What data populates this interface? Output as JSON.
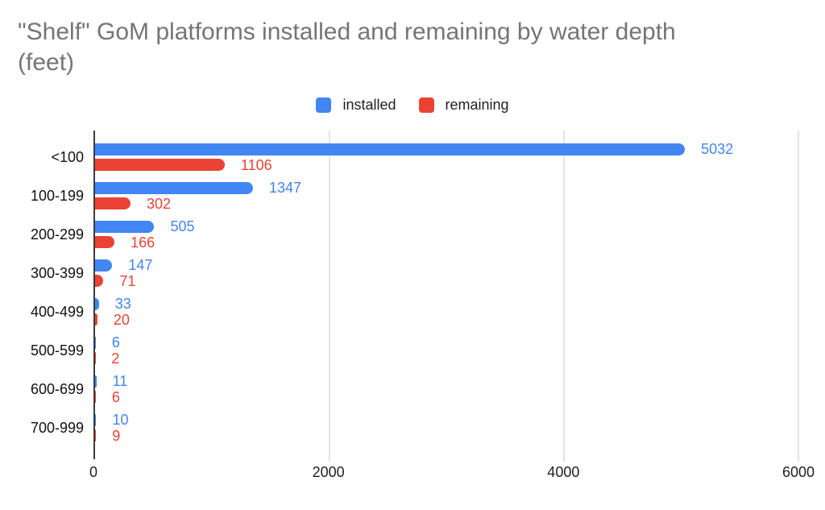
{
  "title": {
    "line1": "\"Shelf\" GoM platforms installed and remaining by water depth",
    "line2": "(feet)"
  },
  "legend": [
    {
      "label": "installed",
      "color": "#4285F4"
    },
    {
      "label": "remaining",
      "color": "#EA4335"
    }
  ],
  "colors": {
    "installed": "#4285F4",
    "remaining": "#EA4335",
    "title_text": "#757575",
    "axis_line": "#3a3a3a",
    "gridline": "#e4e4e4",
    "label_text": "#111111"
  },
  "chart_data": {
    "type": "bar",
    "orientation": "horizontal",
    "title": "\"Shelf\" GoM platforms installed and remaining by water depth (feet)",
    "categories": [
      "<100",
      "100-199",
      "200-299",
      "300-399",
      "400-499",
      "500-599",
      "600-699",
      "700-999"
    ],
    "series": [
      {
        "name": "installed",
        "color": "#4285F4",
        "values": [
          5032,
          1347,
          505,
          147,
          33,
          6,
          11,
          10
        ]
      },
      {
        "name": "remaining",
        "color": "#EA4335",
        "values": [
          1106,
          302,
          166,
          71,
          20,
          2,
          6,
          9
        ]
      }
    ],
    "xlabel": "",
    "ylabel": "",
    "xlim": [
      0,
      6000
    ],
    "x_ticks": [
      0,
      2000,
      4000,
      6000
    ],
    "grid": true,
    "legend_position": "top",
    "data_labels": true
  }
}
